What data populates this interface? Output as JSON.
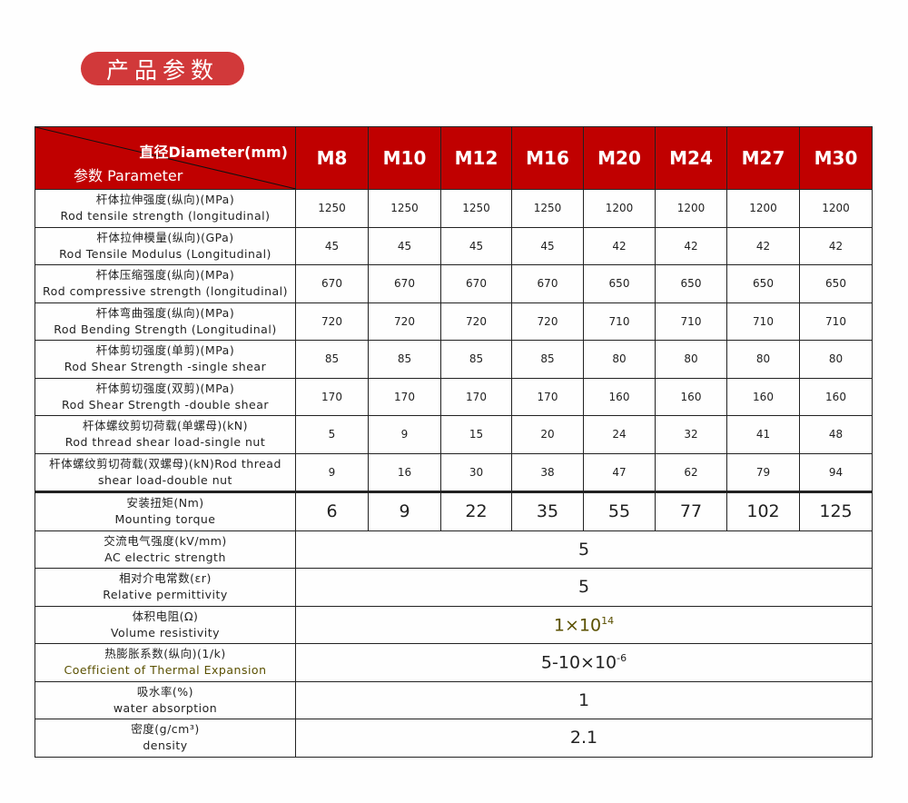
{
  "title": "产品参数",
  "header": {
    "diameter": "直径Diameter(mm)",
    "parameter": "参数 Parameter",
    "sizes": [
      "M8",
      "M10",
      "M12",
      "M16",
      "M20",
      "M24",
      "M27",
      "M30"
    ]
  },
  "rows": [
    {
      "cn": "杆体拉伸强度(纵向)(MPa)",
      "en": "Rod tensile strength (longitudinal)",
      "values": [
        "1250",
        "1250",
        "1250",
        "1250",
        "1200",
        "1200",
        "1200",
        "1200"
      ]
    },
    {
      "cn": "杆体拉伸模量(纵向)(GPa)",
      "en": "Rod Tensile Modulus (Longitudinal)",
      "values": [
        "45",
        "45",
        "45",
        "45",
        "42",
        "42",
        "42",
        "42"
      ]
    },
    {
      "cn": "杆体压缩强度(纵向)(MPa)",
      "en": "Rod compressive strength (longitudinal)",
      "values": [
        "670",
        "670",
        "670",
        "670",
        "650",
        "650",
        "650",
        "650"
      ]
    },
    {
      "cn": "杆体弯曲强度(纵向)(MPa)",
      "en": "Rod Bending Strength (Longitudinal)",
      "values": [
        "720",
        "720",
        "720",
        "720",
        "710",
        "710",
        "710",
        "710"
      ]
    },
    {
      "cn": "杆体剪切强度(单剪)(MPa)",
      "en": "Rod Shear Strength -single shear",
      "values": [
        "85",
        "85",
        "85",
        "85",
        "80",
        "80",
        "80",
        "80"
      ]
    },
    {
      "cn": "杆体剪切强度(双剪)(MPa)",
      "en": "Rod Shear Strength -double shear",
      "values": [
        "170",
        "170",
        "170",
        "170",
        "160",
        "160",
        "160",
        "160"
      ]
    },
    {
      "cn": "杆体螺纹剪切荷载(单螺母)(kN)",
      "en": "Rod thread shear load-single nut",
      "values": [
        "5",
        "9",
        "15",
        "20",
        "24",
        "32",
        "41",
        "48"
      ]
    },
    {
      "cn": "杆体螺纹剪切荷载(双螺母)(kN)Rod thread",
      "en": "shear load-double nut",
      "values": [
        "9",
        "16",
        "30",
        "38",
        "47",
        "62",
        "79",
        "94"
      ]
    }
  ],
  "torque": {
    "cn": "安装扭矩(Nm)",
    "en": "Mounting torque",
    "values": [
      "6",
      "9",
      "22",
      "35",
      "55",
      "77",
      "102",
      "125"
    ]
  },
  "merged": [
    {
      "cn": "交流电气强度(kV/mm)",
      "en": "AC electric strength",
      "value": "5"
    },
    {
      "cn": "相对介电常数(εr)",
      "en": "Relative permittivity",
      "value": "5"
    },
    {
      "cn": "体积电阻(Ω)",
      "en": "Volume resistivity",
      "value": "1×10",
      "exp": "14"
    },
    {
      "cn": "热膨胀系数(纵向)(1/k)",
      "en": "Coefficient of Thermal Expansion",
      "value": "5-10×10",
      "exp": "-6"
    },
    {
      "cn": "吸水率(%)",
      "en": "water absorption",
      "value": "1"
    },
    {
      "cn": "密度(g/cm³)",
      "en": "density",
      "value": "2.1"
    }
  ],
  "colors": {
    "header": "#c00000",
    "badge": "#d1393a",
    "olive": "#5a5000"
  }
}
